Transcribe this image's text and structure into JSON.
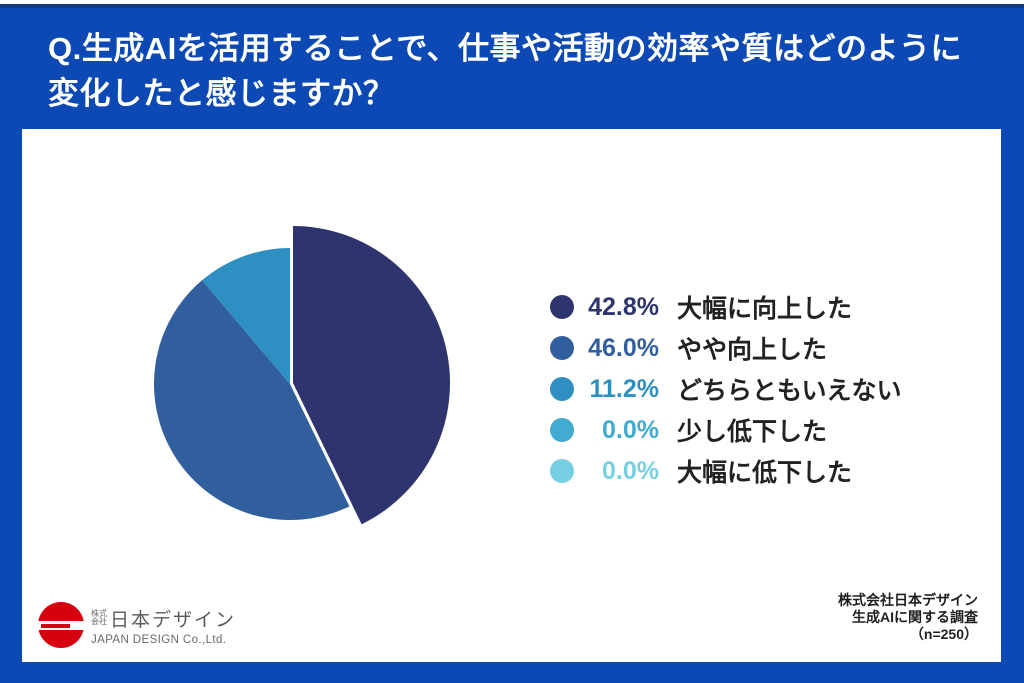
{
  "header": {
    "question": "Q.生成AIを活用することで、仕事や活動の効率や質はどのように変化したと感じますか？"
  },
  "chart_data": {
    "type": "pie",
    "title": "生成AIを活用することで、仕事や活動の効率や質はどのように変化したと感じますか？",
    "categories": [
      "大幅に向上した",
      "やや向上した",
      "どちらともいえない",
      "少し低下した",
      "大幅に低下した"
    ],
    "values": [
      42.8,
      46.0,
      11.2,
      0.0,
      0.0
    ],
    "percent_labels": [
      "42.8%",
      "46.0%",
      "11.2%",
      "0.0%",
      "0.0%"
    ],
    "colors": [
      "#2e356e",
      "#315f9d",
      "#2e8fc2",
      "#41abd2",
      "#76cfe3"
    ],
    "start_angle_deg": 0,
    "direction": "clockwise",
    "emphasized_slice_index": 0,
    "legend_position": "right",
    "sample_size": 250
  },
  "logo": {
    "stacked_prefix_line1": "株式",
    "stacked_prefix_line2": "会社",
    "company_name_jp": "日本デザイン",
    "company_name_en": "JAPAN DESIGN Co.,Ltd.",
    "brand_red": "#d7000f"
  },
  "source": {
    "line1": "株式会社日本デザイン",
    "line2": "生成AIに関する調査",
    "line3": "（n=250）"
  },
  "colors": {
    "background_blue": "#0c49b4",
    "top_line_navy": "#143a80",
    "card_white": "#ffffff",
    "title_text": "#ffffff",
    "legend_label_text": "#222222"
  }
}
